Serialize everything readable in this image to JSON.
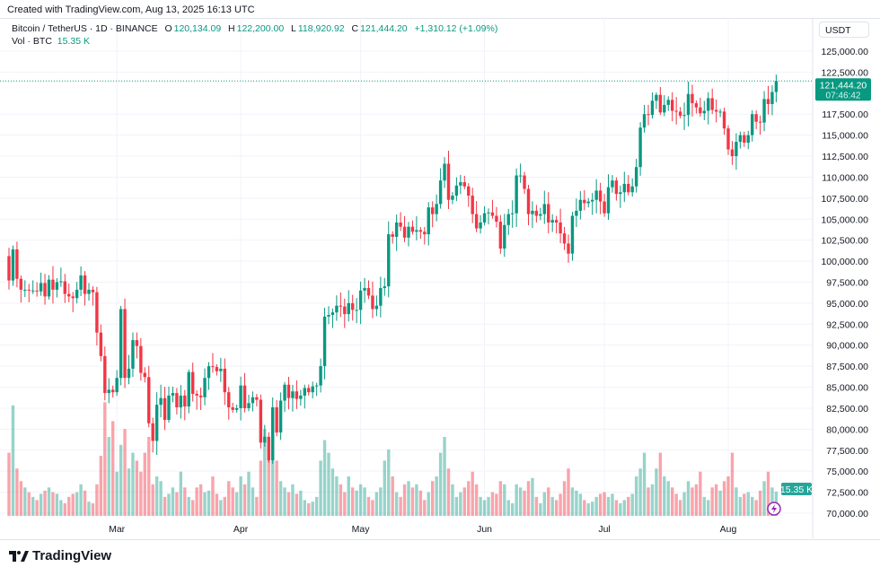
{
  "header": {
    "created": "Created with TradingView.com, Aug 13, 2025 16:13 UTC"
  },
  "legend": {
    "symbol": "Bitcoin / TetherUS · 1D · BINANCE",
    "o_label": "O",
    "o": "120,134.09",
    "h_label": "H",
    "h": "122,200.00",
    "l_label": "L",
    "l": "118,920.92",
    "c_label": "C",
    "c": "121,444.20",
    "change": "+1,310.12 (+1.09%)",
    "vol_label": "Vol · BTC",
    "vol": "15.35 K"
  },
  "price_axis": {
    "currency": "USDT",
    "last_price": "121,444.20",
    "countdown": "07:46:42",
    "vol_badge": "15.35 K"
  },
  "branding": {
    "logo": "TradingView"
  },
  "colors": {
    "up": "#089981",
    "down": "#F23645",
    "grid": "#f0f3fa"
  },
  "chart_data": {
    "type": "candlestick",
    "title": "Bitcoin / TetherUS · 1D · BINANCE",
    "unit": "thousand USDT",
    "start_date": "2025-02-02",
    "first_open": 100.6,
    "last_candle": {
      "open": 120.134,
      "high": 122.2,
      "low": 118.921,
      "close": 121.444
    },
    "close": [
      97.7,
      101.4,
      97.9,
      96.6,
      96.6,
      96.5,
      96.5,
      96.4,
      97.4,
      95.8,
      97.8,
      96.6,
      97.5,
      97.6,
      96.1,
      95.8,
      95.6,
      96.6,
      98.3,
      96.1,
      96.6,
      96.3,
      91.5,
      88.7,
      84.3,
      84.7,
      84.4,
      86.1,
      94.3,
      86.1,
      87.2,
      90.6,
      89.9,
      86.7,
      86.2,
      80.7,
      78.6,
      82.9,
      83.7,
      81.1,
      84.0,
      84.3,
      82.6,
      84.0,
      82.7,
      86.8,
      84.2,
      84.0,
      83.8,
      86.1,
      87.5,
      87.4,
      86.9,
      87.2,
      84.4,
      82.6,
      82.3,
      82.5,
      85.2,
      82.5,
      83.1,
      83.8,
      83.5,
      78.4,
      79.1,
      76.3,
      82.6,
      79.6,
      83.4,
      85.3,
      83.7,
      84.5,
      83.6,
      84.0,
      84.9,
      84.4,
      85.1,
      85.2,
      87.5,
      93.4,
      93.6,
      93.9,
      94.7,
      94.6,
      93.7,
      95.0,
      94.2,
      94.2,
      96.5,
      96.8,
      95.9,
      94.3,
      94.7,
      96.8,
      97.0,
      103.2,
      102.9,
      104.6,
      104.1,
      102.8,
      104.1,
      103.5,
      103.7,
      103.5,
      103.2,
      106.4,
      105.6,
      106.8,
      109.6,
      111.6,
      107.3,
      107.8,
      109.0,
      109.4,
      108.9,
      107.8,
      105.6,
      103.9,
      104.6,
      105.7,
      105.8,
      105.4,
      104.7,
      101.5,
      104.3,
      105.6,
      105.7,
      110.2,
      110.2,
      108.6,
      105.6,
      106.0,
      105.4,
      105.6,
      106.8,
      104.6,
      104.9,
      104.6,
      103.3,
      102.1,
      100.9,
      105.4,
      106.0,
      107.3,
      106.9,
      107.1,
      107.3,
      108.4,
      107.1,
      105.7,
      108.8,
      109.6,
      108.0,
      108.2,
      109.2,
      108.2,
      108.9,
      111.2,
      115.9,
      117.5,
      117.4,
      119.1,
      119.8,
      117.7,
      118.6,
      119.2,
      117.9,
      117.8,
      117.3,
      117.4,
      119.9,
      118.8,
      118.3,
      117.6,
      117.9,
      119.4,
      118.0,
      117.8,
      117.8,
      115.8,
      113.3,
      112.5,
      114.2,
      115.0,
      114.1,
      115.0,
      117.5,
      116.6,
      116.5,
      119.3,
      118.7,
      120.134,
      121.444
    ],
    "volume_k": [
      40,
      70,
      30,
      22,
      18,
      15,
      12,
      10,
      14,
      16,
      18,
      15,
      14,
      10,
      8,
      12,
      14,
      15,
      20,
      16,
      9,
      8,
      20,
      38,
      72,
      50,
      60,
      28,
      45,
      55,
      30,
      40,
      35,
      28,
      40,
      50,
      20,
      25,
      22,
      12,
      14,
      18,
      15,
      28,
      18,
      12,
      10,
      18,
      20,
      15,
      16,
      25,
      14,
      10,
      12,
      22,
      18,
      15,
      25,
      20,
      28,
      18,
      12,
      35,
      55,
      40,
      50,
      35,
      22,
      18,
      15,
      20,
      14,
      16,
      10,
      8,
      9,
      12,
      35,
      48,
      40,
      30,
      25,
      20,
      15,
      25,
      18,
      16,
      20,
      18,
      12,
      10,
      15,
      18,
      35,
      42,
      25,
      15,
      12,
      20,
      22,
      18,
      20,
      16,
      10,
      15,
      22,
      25,
      40,
      50,
      30,
      20,
      12,
      15,
      18,
      22,
      28,
      20,
      12,
      10,
      12,
      15,
      14,
      22,
      20,
      10,
      8,
      20,
      18,
      16,
      22,
      24,
      12,
      8,
      15,
      18,
      12,
      10,
      14,
      22,
      30,
      18,
      16,
      14,
      10,
      8,
      9,
      12,
      14,
      15,
      12,
      14,
      10,
      8,
      10,
      12,
      14,
      25,
      30,
      40,
      18,
      20,
      30,
      40,
      25,
      22,
      18,
      14,
      10,
      15,
      22,
      18,
      20,
      28,
      12,
      10,
      18,
      20,
      16,
      22,
      25,
      40,
      18,
      12,
      14,
      15,
      12,
      10,
      16,
      22,
      28,
      18,
      15.35
    ],
    "y_ticks": [
      "125,000.00",
      "122,500.00",
      "117,500.00",
      "115,000.00",
      "112,500.00",
      "110,000.00",
      "107,500.00",
      "105,000.00",
      "102,500.00",
      "100,000.00",
      "97,500.00",
      "95,000.00",
      "92,500.00",
      "90,000.00",
      "87,500.00",
      "85,000.00",
      "82,500.00",
      "80,000.00",
      "77,500.00",
      "75,000.00",
      "72,500.00",
      "70,000.00"
    ],
    "y_tick_values": [
      125000,
      122500,
      117500,
      115000,
      112500,
      110000,
      107500,
      105000,
      102500,
      100000,
      97500,
      95000,
      92500,
      90000,
      87500,
      85000,
      82500,
      80000,
      77500,
      75000,
      72500,
      70000
    ],
    "x_ticks": [
      {
        "label": "Mar",
        "day_index": 27
      },
      {
        "label": "Apr",
        "day_index": 58
      },
      {
        "label": "May",
        "day_index": 88
      },
      {
        "label": "Jun",
        "day_index": 119
      },
      {
        "label": "Jul",
        "day_index": 149
      },
      {
        "label": "Aug",
        "day_index": 180
      }
    ],
    "ylim": [
      70000,
      125000
    ],
    "grid": true
  }
}
